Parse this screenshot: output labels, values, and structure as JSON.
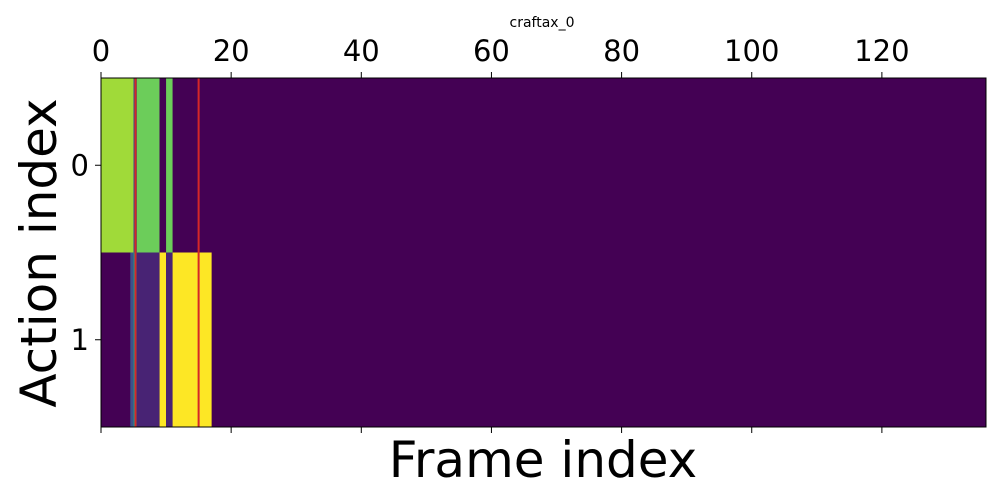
{
  "chart_data": {
    "type": "heatmap",
    "title": "craftax_0",
    "xlabel": "Frame index",
    "ylabel": "Action index",
    "xlim": [
      0,
      136
    ],
    "x_ticks": [
      0,
      20,
      40,
      60,
      80,
      100,
      120
    ],
    "x_tick_position": "top",
    "y_categories": [
      "0",
      "1"
    ],
    "colormap": "viridis",
    "background_color": "#440154",
    "cells": [
      {
        "row": 0,
        "x_start": 0,
        "x_end": 5,
        "color": "#a0da39"
      },
      {
        "row": 0,
        "x_start": 5,
        "x_end": 5.5,
        "color": "#3b528b"
      },
      {
        "row": 0,
        "x_start": 5.5,
        "x_end": 9,
        "color": "#6ccd5a"
      },
      {
        "row": 0,
        "x_start": 9,
        "x_end": 10,
        "color": "#440154"
      },
      {
        "row": 0,
        "x_start": 10,
        "x_end": 11,
        "color": "#6ccd5a"
      },
      {
        "row": 1,
        "x_start": 4.5,
        "x_end": 5,
        "color": "#3b528b"
      },
      {
        "row": 1,
        "x_start": 5,
        "x_end": 5.5,
        "color": "#1f9e89"
      },
      {
        "row": 1,
        "x_start": 5.5,
        "x_end": 9,
        "color": "#482374"
      },
      {
        "row": 1,
        "x_start": 9,
        "x_end": 10,
        "color": "#fde725"
      },
      {
        "row": 1,
        "x_start": 10,
        "x_end": 11,
        "color": "#482374"
      },
      {
        "row": 1,
        "x_start": 11,
        "x_end": 17,
        "color": "#fde725"
      }
    ],
    "vertical_lines": [
      {
        "x": 5.3,
        "color": "#d62728"
      },
      {
        "x": 15,
        "color": "#d62728"
      }
    ],
    "grid": false,
    "legend": "none"
  }
}
